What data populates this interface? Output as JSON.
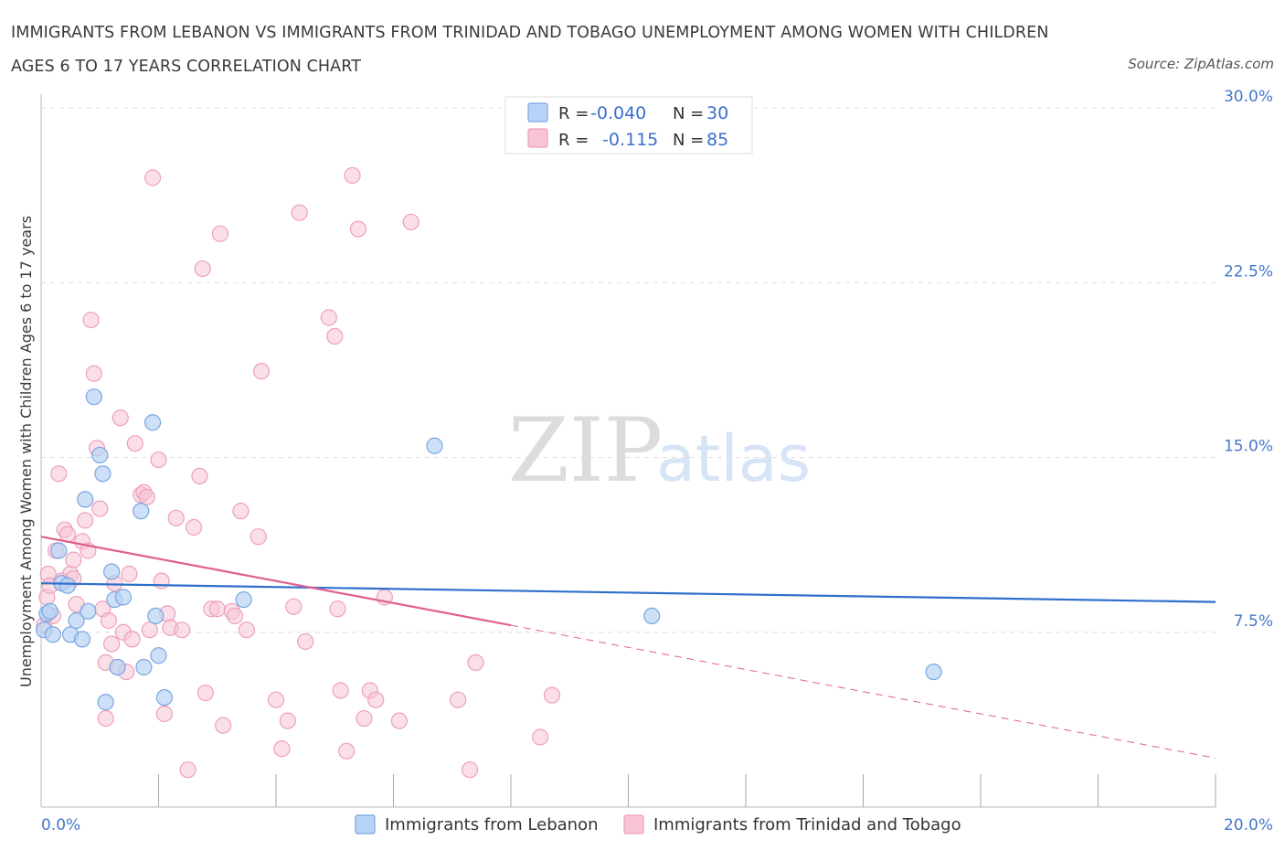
{
  "title": "IMMIGRANTS FROM LEBANON VS IMMIGRANTS FROM TRINIDAD AND TOBAGO UNEMPLOYMENT AMONG WOMEN WITH CHILDREN AGES 6 TO 17 YEARS CORRELATION CHART",
  "source": "Source: ZipAtlas.com",
  "watermark": {
    "zip": "ZIP",
    "atlas": "atlas"
  },
  "legend": {
    "rows": [
      {
        "r_label": "R =",
        "r_value": "-0.040",
        "n_label": "N =",
        "n_value": "30"
      },
      {
        "r_label": "R =",
        "r_value": "-0.115",
        "n_label": "N =",
        "n_value": "85"
      }
    ]
  },
  "bottom_legend": [
    "Immigrants from Lebanon",
    "Immigrants from Trinidad and Tobago"
  ],
  "colors": {
    "lebanon_fill": "#b8d3f5",
    "lebanon_stroke": "#7aa6e0",
    "lebanon_line": "#2f6fcc",
    "trinidad_fill": "#f8c5d6",
    "trinidad_stroke": "#eea0b9",
    "trinidad_line": "#e0608c",
    "tick_label": "#4477cc",
    "grid": "#dddddd"
  },
  "chart_data": {
    "type": "scatter",
    "title": "IMMIGRANTS FROM LEBANON VS IMMIGRANTS FROM TRINIDAD AND TOBAGO UNEMPLOYMENT AMONG WOMEN WITH CHILDREN AGES 6 TO 17 YEARS CORRELATION CHART",
    "xlabel": "",
    "ylabel": "Unemployment Among Women with Children Ages 6 to 17 years",
    "xlim": [
      0,
      20
    ],
    "ylim": [
      0,
      30
    ],
    "x_tick_labels": [
      "0.0%",
      "20.0%"
    ],
    "y_tick_labels": [
      "7.5%",
      "15.0%",
      "22.5%",
      "30.0%"
    ],
    "y_ticks": [
      7.5,
      15.0,
      22.5,
      30.0
    ],
    "grid": true,
    "legend_position": "top-center",
    "series": [
      {
        "name": "Immigrants from Lebanon",
        "r": -0.04,
        "n": 30,
        "trend": {
          "x": [
            0,
            20
          ],
          "y": [
            9.6,
            8.8
          ],
          "style": "solid"
        },
        "points": [
          [
            0.05,
            7.6
          ],
          [
            0.1,
            8.3
          ],
          [
            0.15,
            8.4
          ],
          [
            0.2,
            7.4
          ],
          [
            0.3,
            11.0
          ],
          [
            0.35,
            9.6
          ],
          [
            0.45,
            9.5
          ],
          [
            0.5,
            7.4
          ],
          [
            0.6,
            8.0
          ],
          [
            0.7,
            7.2
          ],
          [
            0.75,
            13.2
          ],
          [
            0.8,
            8.4
          ],
          [
            0.9,
            17.6
          ],
          [
            1.0,
            15.1
          ],
          [
            1.05,
            14.3
          ],
          [
            1.1,
            4.5
          ],
          [
            1.2,
            10.1
          ],
          [
            1.25,
            8.9
          ],
          [
            1.3,
            6.0
          ],
          [
            1.4,
            9.0
          ],
          [
            1.7,
            12.7
          ],
          [
            1.75,
            6.0
          ],
          [
            1.9,
            16.5
          ],
          [
            1.95,
            8.2
          ],
          [
            2.0,
            6.5
          ],
          [
            2.1,
            4.7
          ],
          [
            3.45,
            8.9
          ],
          [
            6.7,
            15.5
          ],
          [
            10.4,
            8.2
          ],
          [
            15.2,
            5.8
          ]
        ]
      },
      {
        "name": "Immigrants from Trinidad and Tobago",
        "r": -0.115,
        "n": 85,
        "trend_solid": {
          "x": [
            0,
            8.0
          ],
          "y": [
            11.6,
            7.8
          ]
        },
        "trend_dashed": {
          "x": [
            8.0,
            20
          ],
          "y": [
            7.8,
            2.1
          ]
        },
        "points": [
          [
            0.05,
            7.8
          ],
          [
            0.1,
            9.0
          ],
          [
            0.12,
            10.0
          ],
          [
            0.15,
            9.5
          ],
          [
            0.2,
            8.2
          ],
          [
            0.25,
            11.0
          ],
          [
            0.3,
            14.3
          ],
          [
            0.35,
            9.7
          ],
          [
            0.4,
            11.9
          ],
          [
            0.45,
            11.7
          ],
          [
            0.5,
            10.0
          ],
          [
            0.55,
            9.8
          ],
          [
            0.6,
            8.7
          ],
          [
            0.7,
            11.4
          ],
          [
            0.75,
            12.3
          ],
          [
            0.8,
            11.0
          ],
          [
            0.85,
            20.9
          ],
          [
            0.9,
            18.6
          ],
          [
            0.95,
            15.4
          ],
          [
            1.0,
            12.8
          ],
          [
            1.05,
            8.5
          ],
          [
            1.1,
            6.2
          ],
          [
            1.15,
            8.0
          ],
          [
            1.2,
            7.0
          ],
          [
            1.25,
            9.6
          ],
          [
            1.3,
            6.0
          ],
          [
            1.35,
            16.7
          ],
          [
            1.4,
            7.5
          ],
          [
            1.45,
            5.8
          ],
          [
            1.5,
            10.0
          ],
          [
            1.55,
            7.2
          ],
          [
            1.6,
            15.6
          ],
          [
            1.7,
            13.4
          ],
          [
            1.75,
            13.5
          ],
          [
            1.8,
            13.3
          ],
          [
            1.85,
            7.6
          ],
          [
            1.9,
            27.0
          ],
          [
            2.0,
            14.9
          ],
          [
            2.05,
            9.7
          ],
          [
            2.1,
            4.0
          ],
          [
            2.15,
            8.3
          ],
          [
            2.2,
            7.7
          ],
          [
            2.3,
            12.4
          ],
          [
            2.4,
            7.6
          ],
          [
            2.5,
            1.6
          ],
          [
            2.6,
            12.0
          ],
          [
            2.7,
            14.2
          ],
          [
            2.75,
            23.1
          ],
          [
            2.8,
            4.9
          ],
          [
            2.9,
            8.5
          ],
          [
            3.0,
            8.5
          ],
          [
            3.05,
            24.6
          ],
          [
            3.1,
            3.5
          ],
          [
            3.25,
            8.4
          ],
          [
            3.3,
            8.2
          ],
          [
            3.4,
            12.7
          ],
          [
            3.5,
            7.6
          ],
          [
            3.7,
            11.6
          ],
          [
            3.75,
            18.7
          ],
          [
            4.0,
            4.6
          ],
          [
            4.1,
            2.5
          ],
          [
            4.2,
            3.7
          ],
          [
            4.3,
            8.6
          ],
          [
            4.4,
            25.5
          ],
          [
            4.5,
            7.1
          ],
          [
            4.9,
            21.0
          ],
          [
            5.0,
            20.2
          ],
          [
            5.05,
            8.5
          ],
          [
            5.1,
            5.0
          ],
          [
            5.2,
            2.4
          ],
          [
            5.3,
            27.1
          ],
          [
            5.4,
            24.8
          ],
          [
            5.5,
            3.8
          ],
          [
            5.6,
            5.0
          ],
          [
            5.7,
            4.6
          ],
          [
            5.85,
            9.0
          ],
          [
            6.1,
            3.7
          ],
          [
            6.3,
            25.1
          ],
          [
            7.1,
            4.6
          ],
          [
            7.3,
            1.6
          ],
          [
            7.4,
            6.2
          ],
          [
            8.5,
            3.0
          ],
          [
            8.7,
            4.8
          ],
          [
            1.1,
            3.8
          ],
          [
            0.55,
            10.6
          ]
        ]
      }
    ]
  }
}
